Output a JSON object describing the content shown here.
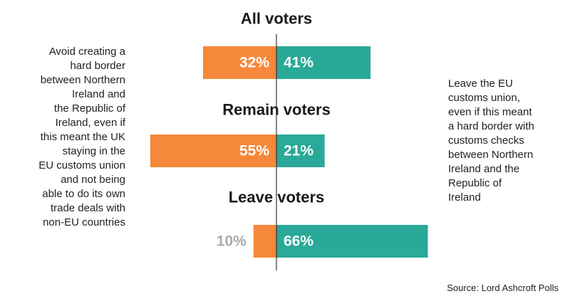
{
  "chart_data": {
    "type": "bar",
    "orientation": "horizontal-diverging",
    "categories": [
      "All voters",
      "Remain voters",
      "Leave voters"
    ],
    "series": [
      {
        "name": "",
        "side": "left",
        "values": [
          32,
          55,
          10
        ],
        "labels": [
          "32%",
          "55%",
          "10%"
        ]
      },
      {
        "name": "",
        "side": "right",
        "values": [
          41,
          21,
          66
        ],
        "labels": [
          "41%",
          "21%",
          "66%"
        ]
      }
    ],
    "colors": {
      "left": "#f5883a",
      "right": "#2aa898",
      "muted_label": "#aaaaaa",
      "axis": "#333333"
    },
    "left_caption": "Avoid creating a\nhard border\nbetween Northern\nIreland and\nthe Republic of\nIreland, even if\nthis meant the UK\nstaying in the\nEU customs union\nand not being\nable to do its own\ntrade deals with\nnon-EU countries",
    "right_caption": "Leave the EU\ncustoms union,\neven if this meant\na hard border with\ncustoms checks\nbetween Northern\nIreland and the\nRepublic of\nIreland",
    "source": "Source: Lord Ashcroft Polls"
  }
}
